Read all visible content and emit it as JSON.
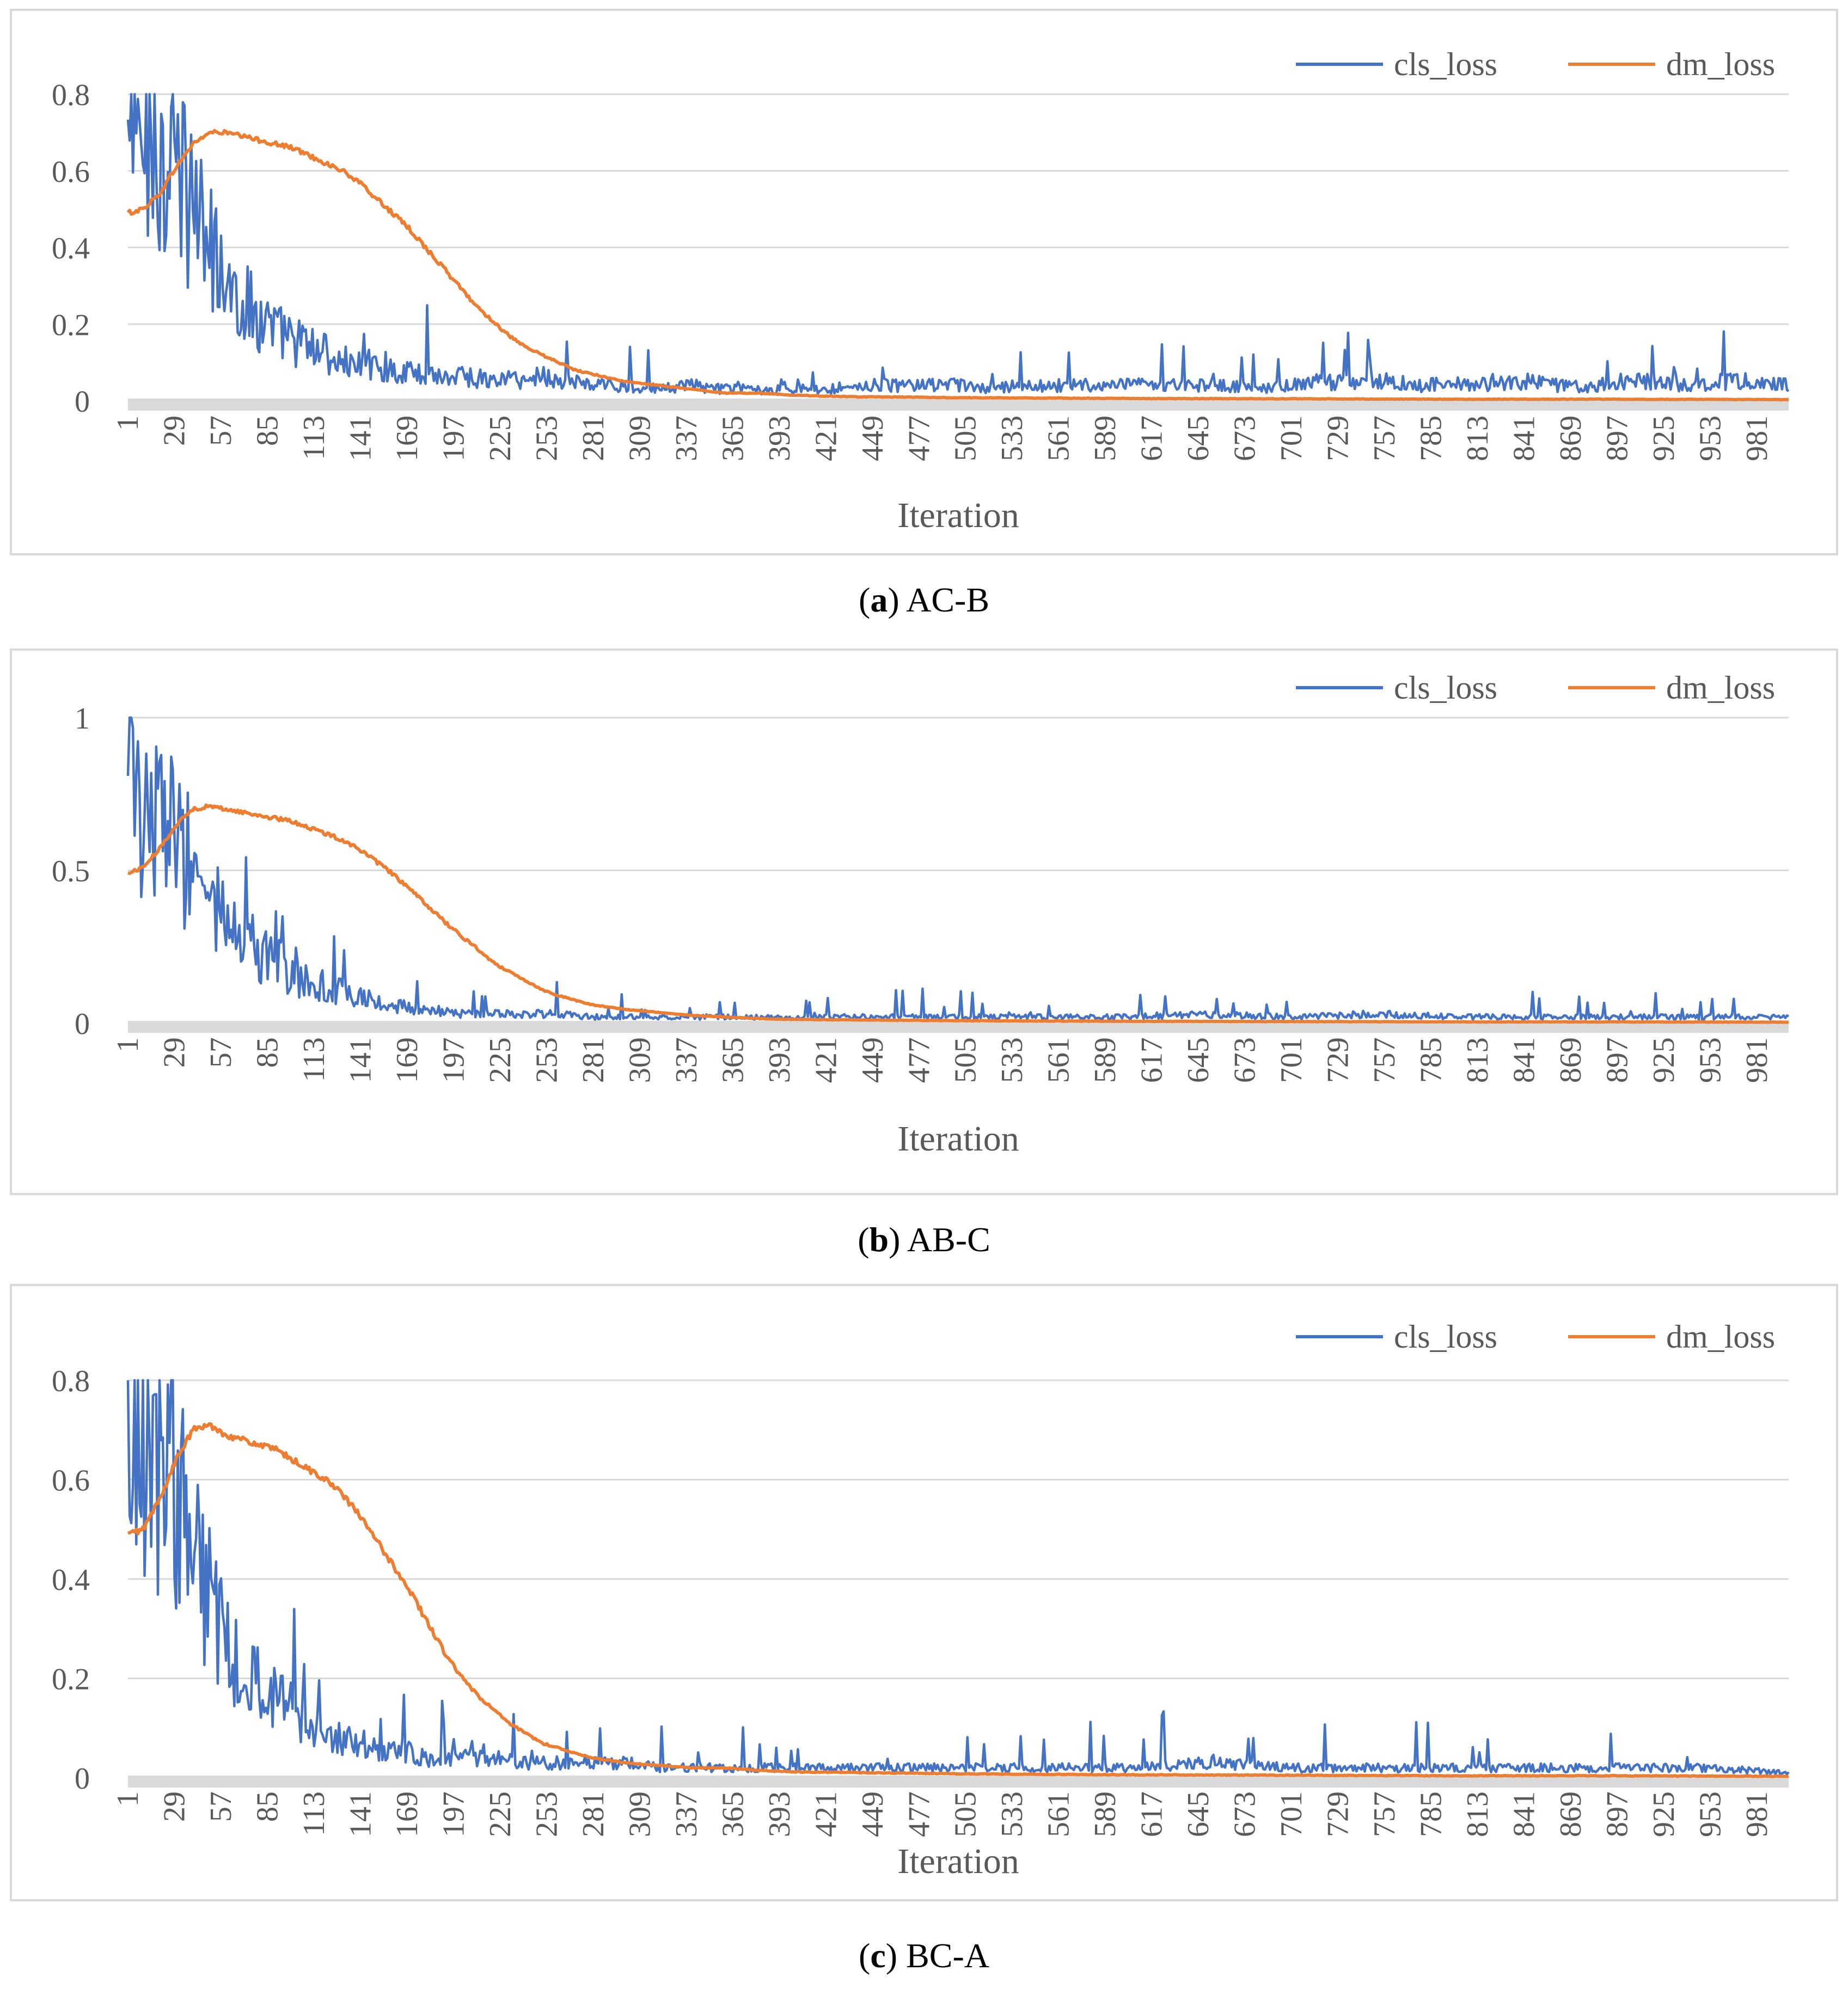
{
  "chart_data": [
    {
      "type": "line",
      "panel_letter": "a",
      "caption": "AC-B",
      "xlabel": "Iteration",
      "ylabel": "",
      "ylim": [
        0,
        0.8
      ],
      "yticks": [
        0,
        0.2,
        0.4,
        0.6,
        0.8
      ],
      "ytick_labels": [
        "0",
        "0.2",
        "0.4",
        "0.6",
        "0.8"
      ],
      "x_range": [
        1,
        1000
      ],
      "x_tick_labels": [
        "1",
        "29",
        "57",
        "85",
        "113",
        "141",
        "169",
        "197",
        "225",
        "253",
        "281",
        "309",
        "337",
        "365",
        "393",
        "421",
        "449",
        "477",
        "505",
        "533",
        "561",
        "589",
        "617",
        "645",
        "673",
        "701",
        "729",
        "757",
        "785",
        "813",
        "841",
        "869",
        "897",
        "925",
        "953",
        "981"
      ],
      "legend": [
        "cls_loss",
        "dm_loss"
      ],
      "legend_position": "top-right",
      "colors": {
        "cls_loss": "#4472c4",
        "dm_loss": "#ed7d31"
      },
      "series": [
        {
          "name": "cls_loss",
          "x": [
            1,
            5,
            10,
            15,
            20,
            25,
            30,
            35,
            40,
            45,
            50,
            55,
            60,
            70,
            80,
            90,
            100,
            110,
            120,
            130,
            140,
            150,
            160,
            170,
            180,
            190,
            200,
            210,
            220,
            230,
            240,
            250,
            260,
            270,
            280,
            300,
            320,
            340,
            360,
            380,
            400,
            420,
            440,
            460,
            480,
            500,
            520,
            540,
            560,
            580,
            600,
            620,
            640,
            660,
            680,
            700,
            720,
            740,
            760,
            780,
            800,
            820,
            840,
            860,
            880,
            900,
            920,
            940,
            960,
            980,
            1000
          ],
          "values": [
            0.66,
            0.67,
            0.66,
            0.72,
            0.63,
            0.62,
            0.6,
            0.55,
            0.5,
            0.45,
            0.4,
            0.35,
            0.3,
            0.26,
            0.22,
            0.18,
            0.16,
            0.14,
            0.12,
            0.1,
            0.09,
            0.1,
            0.08,
            0.07,
            0.08,
            0.06,
            0.07,
            0.06,
            0.05,
            0.06,
            0.05,
            0.07,
            0.05,
            0.05,
            0.04,
            0.04,
            0.03,
            0.04,
            0.03,
            0.03,
            0.03,
            0.03,
            0.04,
            0.04,
            0.04,
            0.04,
            0.03,
            0.04,
            0.04,
            0.04,
            0.04,
            0.04,
            0.04,
            0.04,
            0.03,
            0.04,
            0.05,
            0.05,
            0.05,
            0.04,
            0.05,
            0.04,
            0.05,
            0.04,
            0.04,
            0.05,
            0.05,
            0.04,
            0.05,
            0.05,
            0.04
          ]
        },
        {
          "name": "dm_loss",
          "x": [
            1,
            10,
            20,
            30,
            40,
            50,
            60,
            70,
            80,
            90,
            100,
            110,
            120,
            130,
            140,
            150,
            160,
            170,
            180,
            190,
            200,
            210,
            220,
            230,
            240,
            250,
            260,
            270,
            280,
            290,
            300,
            320,
            340,
            360,
            380,
            400,
            420,
            440,
            460,
            500,
            550,
            600,
            700,
            800,
            900,
            1000
          ],
          "values": [
            0.49,
            0.5,
            0.54,
            0.61,
            0.67,
            0.7,
            0.7,
            0.69,
            0.68,
            0.67,
            0.66,
            0.64,
            0.62,
            0.6,
            0.57,
            0.53,
            0.49,
            0.45,
            0.4,
            0.35,
            0.3,
            0.25,
            0.21,
            0.17,
            0.14,
            0.12,
            0.1,
            0.08,
            0.07,
            0.06,
            0.05,
            0.04,
            0.03,
            0.02,
            0.02,
            0.015,
            0.012,
            0.01,
            0.01,
            0.008,
            0.007,
            0.006,
            0.005,
            0.004,
            0.004,
            0.003
          ]
        }
      ]
    },
    {
      "type": "line",
      "panel_letter": "b",
      "caption": "AB-C",
      "xlabel": "Iteration",
      "ylabel": "",
      "ylim": [
        0,
        1
      ],
      "yticks": [
        0,
        0.5,
        1
      ],
      "ytick_labels": [
        "0",
        "0.5",
        "1"
      ],
      "x_range": [
        1,
        1000
      ],
      "x_tick_labels": [
        "1",
        "29",
        "57",
        "85",
        "113",
        "141",
        "169",
        "197",
        "225",
        "253",
        "281",
        "309",
        "337",
        "365",
        "393",
        "421",
        "449",
        "477",
        "505",
        "533",
        "561",
        "589",
        "617",
        "645",
        "673",
        "701",
        "729",
        "757",
        "785",
        "813",
        "841",
        "869",
        "897",
        "925",
        "953",
        "981"
      ],
      "legend": [
        "cls_loss",
        "dm_loss"
      ],
      "legend_position": "top-right",
      "colors": {
        "cls_loss": "#4472c4",
        "dm_loss": "#ed7d31"
      },
      "series": [
        {
          "name": "cls_loss",
          "x": [
            1,
            5,
            10,
            15,
            20,
            25,
            30,
            35,
            40,
            45,
            50,
            60,
            70,
            80,
            90,
            100,
            110,
            120,
            130,
            140,
            150,
            160,
            170,
            180,
            190,
            200,
            220,
            240,
            260,
            280,
            300,
            320,
            340,
            360,
            380,
            400,
            420,
            440,
            460,
            480,
            500,
            550,
            600,
            650,
            700,
            750,
            800,
            850,
            900,
            950,
            1000
          ],
          "values": [
            0.72,
            0.74,
            0.73,
            0.7,
            0.66,
            0.62,
            0.6,
            0.56,
            0.5,
            0.45,
            0.4,
            0.32,
            0.28,
            0.22,
            0.2,
            0.16,
            0.14,
            0.12,
            0.1,
            0.08,
            0.07,
            0.06,
            0.05,
            0.04,
            0.04,
            0.03,
            0.03,
            0.03,
            0.03,
            0.02,
            0.02,
            0.02,
            0.02,
            0.02,
            0.02,
            0.015,
            0.02,
            0.02,
            0.02,
            0.02,
            0.02,
            0.02,
            0.02,
            0.03,
            0.02,
            0.03,
            0.02,
            0.02,
            0.02,
            0.02,
            0.02
          ]
        },
        {
          "name": "dm_loss",
          "x": [
            1,
            10,
            20,
            30,
            40,
            50,
            60,
            70,
            80,
            90,
            100,
            110,
            120,
            130,
            140,
            150,
            160,
            170,
            180,
            190,
            200,
            210,
            220,
            230,
            240,
            250,
            260,
            280,
            300,
            320,
            340,
            360,
            380,
            400,
            450,
            500,
            600,
            700,
            800,
            900,
            1000
          ],
          "values": [
            0.49,
            0.51,
            0.57,
            0.65,
            0.7,
            0.71,
            0.7,
            0.69,
            0.68,
            0.67,
            0.66,
            0.64,
            0.62,
            0.6,
            0.57,
            0.53,
            0.49,
            0.44,
            0.39,
            0.34,
            0.29,
            0.25,
            0.2,
            0.17,
            0.14,
            0.11,
            0.09,
            0.06,
            0.045,
            0.035,
            0.025,
            0.02,
            0.015,
            0.012,
            0.01,
            0.008,
            0.006,
            0.005,
            0.004,
            0.004,
            0.003
          ]
        }
      ]
    },
    {
      "type": "line",
      "panel_letter": "c",
      "caption": "BC-A",
      "xlabel": "Iteration",
      "ylabel": "",
      "ylim": [
        0,
        0.8
      ],
      "yticks": [
        0,
        0.2,
        0.4,
        0.6,
        0.8
      ],
      "ytick_labels": [
        "0",
        "0.2",
        "0.4",
        "0.6",
        "0.8"
      ],
      "x_range": [
        1,
        1000
      ],
      "x_tick_labels": [
        "1",
        "29",
        "57",
        "85",
        "113",
        "141",
        "169",
        "197",
        "225",
        "253",
        "281",
        "309",
        "337",
        "365",
        "393",
        "421",
        "449",
        "477",
        "505",
        "533",
        "561",
        "589",
        "617",
        "645",
        "673",
        "701",
        "729",
        "757",
        "785",
        "813",
        "841",
        "869",
        "897",
        "925",
        "953",
        "981"
      ],
      "legend": [
        "cls_loss",
        "dm_loss"
      ],
      "legend_position": "top-right",
      "colors": {
        "cls_loss": "#4472c4",
        "dm_loss": "#ed7d31"
      },
      "series": [
        {
          "name": "cls_loss",
          "x": [
            1,
            5,
            10,
            15,
            20,
            25,
            30,
            35,
            40,
            45,
            50,
            55,
            60,
            70,
            80,
            90,
            100,
            110,
            120,
            130,
            140,
            150,
            160,
            170,
            180,
            190,
            200,
            220,
            240,
            260,
            280,
            300,
            320,
            340,
            360,
            380,
            400,
            420,
            440,
            460,
            480,
            500,
            550,
            600,
            650,
            700,
            750,
            800,
            850,
            900,
            950,
            1000
          ],
          "values": [
            0.72,
            0.74,
            0.72,
            0.7,
            0.66,
            0.62,
            0.58,
            0.52,
            0.45,
            0.4,
            0.35,
            0.3,
            0.26,
            0.22,
            0.18,
            0.15,
            0.13,
            0.1,
            0.09,
            0.08,
            0.07,
            0.06,
            0.05,
            0.05,
            0.04,
            0.04,
            0.04,
            0.04,
            0.03,
            0.03,
            0.03,
            0.03,
            0.02,
            0.02,
            0.02,
            0.02,
            0.02,
            0.02,
            0.02,
            0.02,
            0.02,
            0.02,
            0.02,
            0.02,
            0.03,
            0.02,
            0.02,
            0.02,
            0.02,
            0.02,
            0.02,
            0.01
          ]
        },
        {
          "name": "dm_loss",
          "x": [
            1,
            10,
            20,
            30,
            40,
            50,
            60,
            70,
            80,
            90,
            100,
            110,
            120,
            130,
            140,
            150,
            160,
            170,
            180,
            190,
            200,
            210,
            220,
            230,
            240,
            250,
            260,
            280,
            300,
            320,
            340,
            360,
            380,
            400,
            450,
            500,
            600,
            700,
            800,
            900,
            1000
          ],
          "values": [
            0.49,
            0.5,
            0.56,
            0.64,
            0.7,
            0.71,
            0.69,
            0.68,
            0.67,
            0.66,
            0.64,
            0.62,
            0.6,
            0.57,
            0.53,
            0.48,
            0.43,
            0.38,
            0.32,
            0.26,
            0.21,
            0.17,
            0.14,
            0.11,
            0.09,
            0.07,
            0.06,
            0.04,
            0.03,
            0.025,
            0.02,
            0.02,
            0.015,
            0.012,
            0.01,
            0.008,
            0.006,
            0.005,
            0.004,
            0.004,
            0.003
          ]
        }
      ]
    }
  ]
}
